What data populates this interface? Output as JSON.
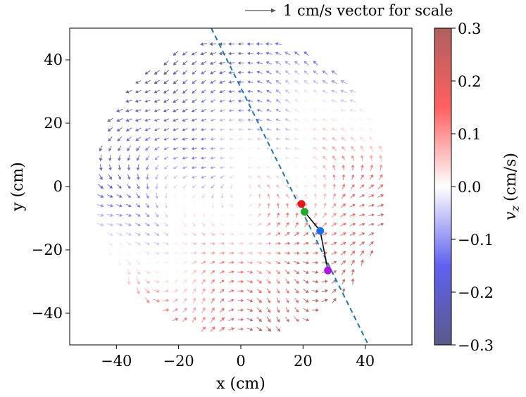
{
  "chart_data": {
    "type": "quiver",
    "xlabel": "x (cm)",
    "ylabel": "y (cm)",
    "xlim": [
      -55,
      55
    ],
    "ylim": [
      -50,
      50
    ],
    "x_ticks": [
      -40,
      -20,
      0,
      20,
      40
    ],
    "x_tick_labels": [
      "−40",
      "−20",
      "0",
      "20",
      "40"
    ],
    "y_ticks": [
      40,
      20,
      0,
      -20,
      -40
    ],
    "y_tick_labels": [
      "40",
      "20",
      "0",
      "−20",
      "−40"
    ],
    "scale_label": "1 cm/s vector for scale",
    "scale_vector_cm_s": 1,
    "field_domain": {
      "shape": "disk",
      "center": [
        0,
        0
      ],
      "radius_cm": 50,
      "grid_spacing_cm": 3
    },
    "colorbar": {
      "label": "v_z (cm/s)",
      "label_symbol": "v",
      "label_subscript": "z",
      "label_units": "(cm/s)",
      "min": -0.3,
      "max": 0.3,
      "ticks": [
        0.3,
        0.2,
        0.1,
        0.0,
        -0.1,
        -0.2,
        -0.3
      ],
      "tick_labels": [
        "0.3",
        "0.2",
        "0.1",
        "0.0",
        "−0.1",
        "−0.2",
        "−0.3"
      ],
      "colors": [
        "#5a5a8a",
        "#6060f0",
        "#ffffff",
        "#ff6060",
        "#b06060"
      ]
    },
    "dashed_line": {
      "points": [
        [
          -9.5,
          50
        ],
        [
          41,
          -50
        ]
      ],
      "color": "#1f77b4"
    },
    "path_points": [
      {
        "x": 19.5,
        "y": -5.5,
        "color": "#e8151b"
      },
      {
        "x": 20.5,
        "y": -8,
        "color": "#22a82b"
      },
      {
        "x": 25.5,
        "y": -14,
        "color": "#1d6fe8"
      },
      {
        "x": 28,
        "y": -26.5,
        "color": "#b013e8"
      }
    ],
    "path_color": "#000000"
  }
}
